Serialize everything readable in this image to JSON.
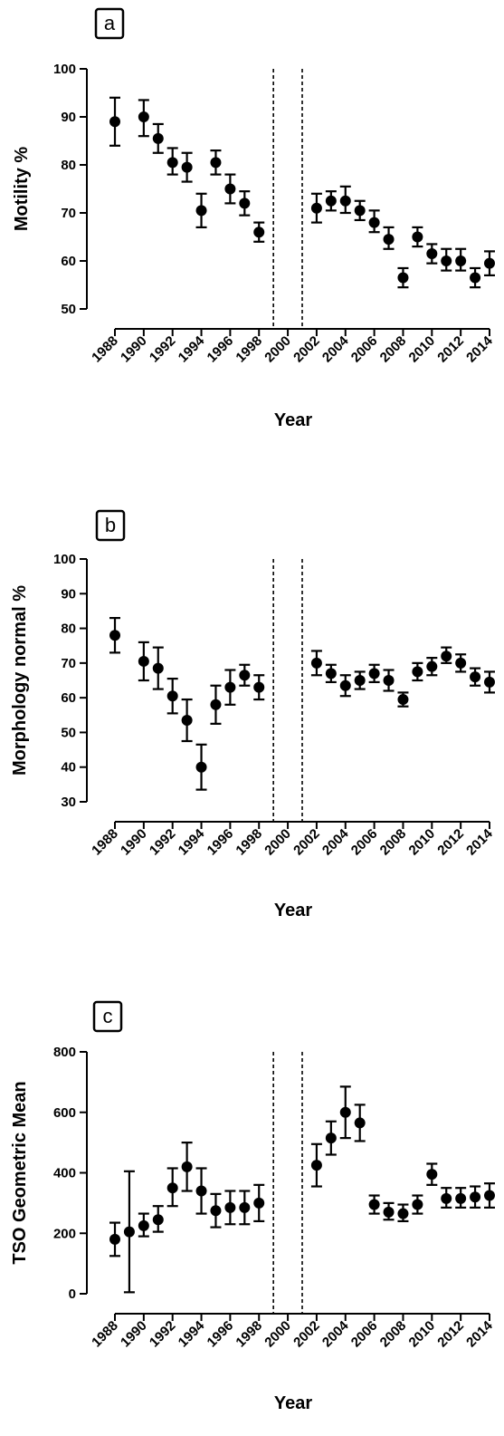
{
  "chart_data": [
    {
      "type": "scatter",
      "panel_label": "a",
      "ylabel": "Motility %",
      "xlabel": "Year",
      "ylim": [
        50,
        100
      ],
      "yticks": [
        50,
        60,
        70,
        80,
        90,
        100
      ],
      "xlim": [
        1988,
        2014
      ],
      "xticks": [
        1988,
        1990,
        1992,
        1994,
        1996,
        1998,
        2000,
        2002,
        2004,
        2006,
        2008,
        2010,
        2012,
        2014
      ],
      "reference_lines_x": [
        1999,
        2001
      ],
      "points": [
        {
          "x": 1988,
          "y": 89,
          "lo": 84,
          "hi": 94
        },
        {
          "x": 1990,
          "y": 90,
          "lo": 86,
          "hi": 93.5
        },
        {
          "x": 1991,
          "y": 85.5,
          "lo": 82.5,
          "hi": 88.5
        },
        {
          "x": 1992,
          "y": 80.5,
          "lo": 78,
          "hi": 83.5
        },
        {
          "x": 1993,
          "y": 79.5,
          "lo": 76.5,
          "hi": 82.5
        },
        {
          "x": 1994,
          "y": 70.5,
          "lo": 67,
          "hi": 74
        },
        {
          "x": 1995,
          "y": 80.5,
          "lo": 78,
          "hi": 83
        },
        {
          "x": 1996,
          "y": 75,
          "lo": 72,
          "hi": 78
        },
        {
          "x": 1997,
          "y": 72,
          "lo": 69.5,
          "hi": 74.5
        },
        {
          "x": 1998,
          "y": 66,
          "lo": 64,
          "hi": 68
        },
        {
          "x": 2002,
          "y": 71,
          "lo": 68,
          "hi": 74
        },
        {
          "x": 2003,
          "y": 72.5,
          "lo": 70.5,
          "hi": 74.5
        },
        {
          "x": 2004,
          "y": 72.5,
          "lo": 70,
          "hi": 75.5
        },
        {
          "x": 2005,
          "y": 70.5,
          "lo": 68.5,
          "hi": 72.5
        },
        {
          "x": 2006,
          "y": 68,
          "lo": 66,
          "hi": 70.5
        },
        {
          "x": 2007,
          "y": 64.5,
          "lo": 62.5,
          "hi": 67
        },
        {
          "x": 2008,
          "y": 56.5,
          "lo": 54.5,
          "hi": 58.5
        },
        {
          "x": 2009,
          "y": 65,
          "lo": 63,
          "hi": 67
        },
        {
          "x": 2010,
          "y": 61.5,
          "lo": 59.5,
          "hi": 63.5
        },
        {
          "x": 2011,
          "y": 60,
          "lo": 58,
          "hi": 62.5
        },
        {
          "x": 2012,
          "y": 60,
          "lo": 58,
          "hi": 62.5
        },
        {
          "x": 2013,
          "y": 56.5,
          "lo": 54.5,
          "hi": 58.5
        },
        {
          "x": 2014,
          "y": 59.5,
          "lo": 57,
          "hi": 62
        }
      ]
    },
    {
      "type": "scatter",
      "panel_label": "b",
      "ylabel": "Morphology normal %",
      "xlabel": "Year",
      "ylim": [
        30,
        100
      ],
      "yticks": [
        30,
        40,
        50,
        60,
        70,
        80,
        90,
        100
      ],
      "xlim": [
        1988,
        2014
      ],
      "xticks": [
        1988,
        1990,
        1992,
        1994,
        1996,
        1998,
        2000,
        2002,
        2004,
        2006,
        2008,
        2010,
        2012,
        2014
      ],
      "reference_lines_x": [
        1999,
        2001
      ],
      "points": [
        {
          "x": 1988,
          "y": 78,
          "lo": 73,
          "hi": 83
        },
        {
          "x": 1990,
          "y": 70.5,
          "lo": 65,
          "hi": 76
        },
        {
          "x": 1991,
          "y": 68.5,
          "lo": 62.5,
          "hi": 74.5
        },
        {
          "x": 1992,
          "y": 60.5,
          "lo": 55.5,
          "hi": 65.5
        },
        {
          "x": 1993,
          "y": 53.5,
          "lo": 47.5,
          "hi": 59.5
        },
        {
          "x": 1994,
          "y": 40,
          "lo": 33.5,
          "hi": 46.5
        },
        {
          "x": 1995,
          "y": 58,
          "lo": 52.5,
          "hi": 63.5
        },
        {
          "x": 1996,
          "y": 63,
          "lo": 58,
          "hi": 68
        },
        {
          "x": 1997,
          "y": 66.5,
          "lo": 63.5,
          "hi": 69.5
        },
        {
          "x": 1998,
          "y": 63,
          "lo": 59.5,
          "hi": 66.5
        },
        {
          "x": 2002,
          "y": 70,
          "lo": 66.5,
          "hi": 73.5
        },
        {
          "x": 2003,
          "y": 67,
          "lo": 64.5,
          "hi": 69.5
        },
        {
          "x": 2004,
          "y": 63.5,
          "lo": 60.5,
          "hi": 66.5
        },
        {
          "x": 2005,
          "y": 65,
          "lo": 62.5,
          "hi": 67.5
        },
        {
          "x": 2006,
          "y": 67,
          "lo": 64.5,
          "hi": 69.5
        },
        {
          "x": 2007,
          "y": 65,
          "lo": 62,
          "hi": 68
        },
        {
          "x": 2008,
          "y": 59.5,
          "lo": 57.5,
          "hi": 61.5
        },
        {
          "x": 2009,
          "y": 67.5,
          "lo": 65,
          "hi": 70
        },
        {
          "x": 2010,
          "y": 69,
          "lo": 66.5,
          "hi": 71.5
        },
        {
          "x": 2011,
          "y": 72,
          "lo": 70,
          "hi": 74.5
        },
        {
          "x": 2012,
          "y": 70,
          "lo": 67.5,
          "hi": 72.5
        },
        {
          "x": 2013,
          "y": 66,
          "lo": 63.5,
          "hi": 68.5
        },
        {
          "x": 2014,
          "y": 64.5,
          "lo": 61.5,
          "hi": 67.5
        }
      ]
    },
    {
      "type": "scatter",
      "panel_label": "c",
      "ylabel": "TSO Geometric Mean",
      "xlabel": "Year",
      "ylim": [
        0,
        800
      ],
      "yticks": [
        0,
        200,
        400,
        600,
        800
      ],
      "xlim": [
        1988,
        2014
      ],
      "xticks": [
        1988,
        1990,
        1992,
        1994,
        1996,
        1998,
        2000,
        2002,
        2004,
        2006,
        2008,
        2010,
        2012,
        2014
      ],
      "reference_lines_x": [
        1999,
        2001
      ],
      "points": [
        {
          "x": 1988,
          "y": 180,
          "lo": 125,
          "hi": 235
        },
        {
          "x": 1989,
          "y": 205,
          "lo": 5,
          "hi": 405
        },
        {
          "x": 1990,
          "y": 225,
          "lo": 190,
          "hi": 265
        },
        {
          "x": 1991,
          "y": 245,
          "lo": 205,
          "hi": 290
        },
        {
          "x": 1992,
          "y": 350,
          "lo": 290,
          "hi": 415
        },
        {
          "x": 1993,
          "y": 420,
          "lo": 340,
          "hi": 500
        },
        {
          "x": 1994,
          "y": 340,
          "lo": 265,
          "hi": 415
        },
        {
          "x": 1995,
          "y": 275,
          "lo": 220,
          "hi": 330
        },
        {
          "x": 1996,
          "y": 285,
          "lo": 230,
          "hi": 340
        },
        {
          "x": 1997,
          "y": 285,
          "lo": 230,
          "hi": 340
        },
        {
          "x": 1998,
          "y": 300,
          "lo": 240,
          "hi": 360
        },
        {
          "x": 2002,
          "y": 425,
          "lo": 355,
          "hi": 495
        },
        {
          "x": 2003,
          "y": 515,
          "lo": 460,
          "hi": 570
        },
        {
          "x": 2004,
          "y": 600,
          "lo": 515,
          "hi": 685
        },
        {
          "x": 2005,
          "y": 565,
          "lo": 505,
          "hi": 625
        },
        {
          "x": 2006,
          "y": 295,
          "lo": 265,
          "hi": 325
        },
        {
          "x": 2007,
          "y": 270,
          "lo": 245,
          "hi": 300
        },
        {
          "x": 2008,
          "y": 265,
          "lo": 240,
          "hi": 295
        },
        {
          "x": 2009,
          "y": 295,
          "lo": 265,
          "hi": 325
        },
        {
          "x": 2010,
          "y": 395,
          "lo": 360,
          "hi": 430
        },
        {
          "x": 2011,
          "y": 315,
          "lo": 285,
          "hi": 350
        },
        {
          "x": 2012,
          "y": 315,
          "lo": 285,
          "hi": 350
        },
        {
          "x": 2013,
          "y": 320,
          "lo": 285,
          "hi": 355
        },
        {
          "x": 2014,
          "y": 325,
          "lo": 285,
          "hi": 365
        }
      ]
    }
  ]
}
